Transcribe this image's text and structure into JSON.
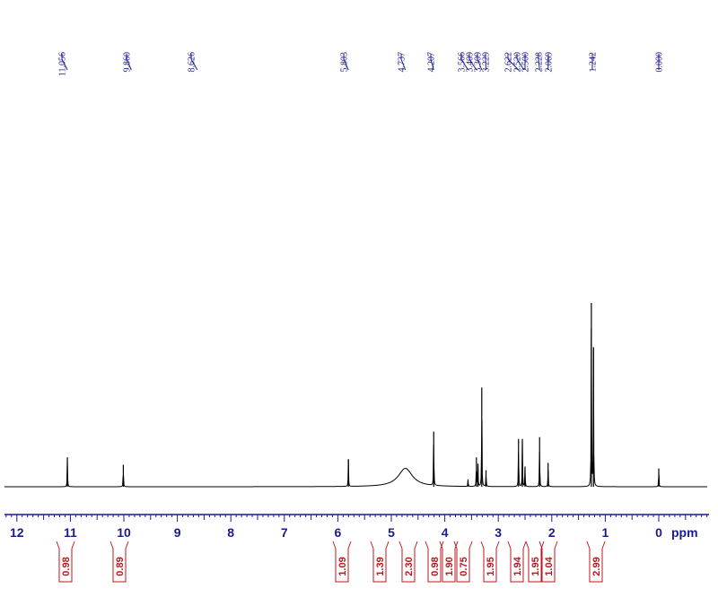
{
  "chart_data": {
    "type": "line",
    "title": "",
    "xlabel": "ppm",
    "ylabel": "",
    "xlim": [
      12.3,
      -0.6
    ],
    "x_reversed": true,
    "grid": false,
    "colors": {
      "spectrum": "#000000",
      "axis": "#1a1a8c",
      "peak_labels": "#1a1a8c",
      "integrals": "#c0141c"
    },
    "x_ticks": [
      "12",
      "11",
      "10",
      "9",
      "8",
      "7",
      "6",
      "5",
      "4",
      "3",
      "2",
      "1",
      "0"
    ],
    "peak_labels": [
      "11.056",
      "9.860",
      "8.626",
      "5.803",
      "4.737",
      "4.207",
      "3.566",
      "3.409",
      "3.309",
      "3.229",
      "2.622",
      "2.520",
      "2.500",
      "2.228",
      "2.069",
      "1.242",
      "0.000"
    ],
    "peaks": [
      {
        "ppm": 11.056,
        "height": 0.16
      },
      {
        "ppm": 10.01,
        "height": 0.12
      },
      {
        "ppm": 5.803,
        "height": 0.15
      },
      {
        "ppm": 4.737,
        "height": 0.1,
        "broad": true
      },
      {
        "ppm": 4.207,
        "height": 0.3
      },
      {
        "ppm": 3.566,
        "height": 0.04
      },
      {
        "ppm": 3.409,
        "height": 0.16
      },
      {
        "ppm": 3.38,
        "height": 0.12
      },
      {
        "ppm": 3.309,
        "height": 0.54
      },
      {
        "ppm": 3.229,
        "height": 0.09
      },
      {
        "ppm": 2.622,
        "height": 0.26
      },
      {
        "ppm": 2.55,
        "height": 0.26
      },
      {
        "ppm": 2.5,
        "height": 0.11
      },
      {
        "ppm": 2.228,
        "height": 0.27
      },
      {
        "ppm": 2.069,
        "height": 0.13
      },
      {
        "ppm": 1.26,
        "height": 1.0
      },
      {
        "ppm": 1.22,
        "height": 0.76
      },
      {
        "ppm": 0.0,
        "height": 0.1
      }
    ],
    "integrals": [
      {
        "value": "0.98",
        "ppm": 11.06
      },
      {
        "value": "0.89",
        "ppm": 10.0
      },
      {
        "value": "1.09",
        "ppm": 5.82
      },
      {
        "value": "1.39",
        "ppm": 4.75
      },
      {
        "value": "2.30",
        "ppm": 4.26
      },
      {
        "value": "0.98",
        "ppm": 3.84
      },
      {
        "value": "1.90",
        "ppm": 3.6
      },
      {
        "value": "0.75",
        "ppm": 3.4
      },
      {
        "value": "1.95",
        "ppm": 2.95
      },
      {
        "value": "1.94",
        "ppm": 2.58
      },
      {
        "value": "1.95",
        "ppm": 2.24
      },
      {
        "value": "1.04",
        "ppm": 2.02
      },
      {
        "value": "2.99",
        "ppm": 1.24
      }
    ]
  }
}
